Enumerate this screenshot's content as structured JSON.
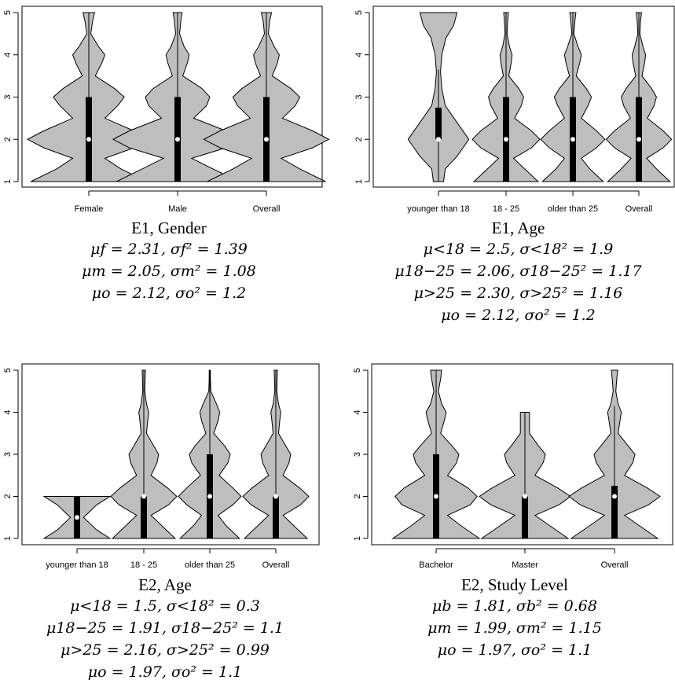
{
  "chart_data": [
    {
      "type": "violin",
      "title": "E1, Gender",
      "categories": [
        "Female",
        "Male",
        "Overall"
      ],
      "ylim": [
        1,
        5
      ],
      "yticks": [
        1,
        2,
        3,
        4,
        5
      ],
      "series": [
        {
          "q1": 1,
          "median": 2,
          "q3": 3,
          "min": 1,
          "max": 5,
          "density": [
            [
              1.0,
              0.9
            ],
            [
              1.3,
              0.5
            ],
            [
              1.55,
              0.25
            ],
            [
              1.8,
              0.7
            ],
            [
              2.0,
              0.95
            ],
            [
              2.2,
              0.7
            ],
            [
              2.5,
              0.25
            ],
            [
              2.8,
              0.45
            ],
            [
              3.0,
              0.55
            ],
            [
              3.2,
              0.4
            ],
            [
              3.5,
              0.1
            ],
            [
              3.8,
              0.2
            ],
            [
              4.0,
              0.25
            ],
            [
              4.2,
              0.15
            ],
            [
              4.5,
              0.03
            ],
            [
              4.8,
              0.06
            ],
            [
              5.0,
              0.09
            ]
          ]
        },
        {
          "q1": 1,
          "median": 2,
          "q3": 3,
          "min": 1,
          "max": 5,
          "density": [
            [
              1.0,
              0.95
            ],
            [
              1.3,
              0.55
            ],
            [
              1.55,
              0.22
            ],
            [
              1.8,
              0.75
            ],
            [
              2.0,
              1.0
            ],
            [
              2.2,
              0.75
            ],
            [
              2.5,
              0.25
            ],
            [
              2.8,
              0.45
            ],
            [
              3.0,
              0.5
            ],
            [
              3.2,
              0.38
            ],
            [
              3.5,
              0.08
            ],
            [
              3.8,
              0.15
            ],
            [
              4.0,
              0.18
            ],
            [
              4.2,
              0.1
            ],
            [
              4.5,
              0.03
            ],
            [
              4.8,
              0.05
            ],
            [
              5.0,
              0.07
            ]
          ]
        },
        {
          "q1": 1,
          "median": 2,
          "q3": 3,
          "min": 1,
          "max": 5,
          "density": [
            [
              1.0,
              0.92
            ],
            [
              1.3,
              0.52
            ],
            [
              1.55,
              0.23
            ],
            [
              1.8,
              0.72
            ],
            [
              2.0,
              0.97
            ],
            [
              2.2,
              0.72
            ],
            [
              2.5,
              0.25
            ],
            [
              2.8,
              0.45
            ],
            [
              3.0,
              0.52
            ],
            [
              3.2,
              0.38
            ],
            [
              3.5,
              0.09
            ],
            [
              3.8,
              0.17
            ],
            [
              4.0,
              0.2
            ],
            [
              4.2,
              0.12
            ],
            [
              4.5,
              0.03
            ],
            [
              4.8,
              0.05
            ],
            [
              5.0,
              0.08
            ]
          ]
        }
      ]
    },
    {
      "type": "violin",
      "title": "E1, Age",
      "categories": [
        "younger than 18",
        "18 - 25",
        "older than 25",
        "Overall"
      ],
      "ylim": [
        1,
        5
      ],
      "yticks": [
        1,
        2,
        3,
        4,
        5
      ],
      "series": [
        {
          "q1": 2,
          "median": 2,
          "q3": 2.75,
          "min": 1,
          "max": 3.65,
          "density": [
            [
              1.0,
              0.15
            ],
            [
              1.3,
              0.2
            ],
            [
              1.6,
              0.55
            ],
            [
              2.0,
              0.9
            ],
            [
              2.4,
              0.55
            ],
            [
              2.8,
              0.2
            ],
            [
              3.2,
              0.1
            ],
            [
              3.6,
              0.06
            ],
            [
              4.0,
              0.1
            ],
            [
              4.4,
              0.22
            ],
            [
              4.7,
              0.45
            ],
            [
              5.0,
              0.55
            ]
          ]
        },
        {
          "q1": 1,
          "median": 2,
          "q3": 3,
          "min": 1,
          "max": 5,
          "density": [
            [
              1.0,
              0.95
            ],
            [
              1.3,
              0.55
            ],
            [
              1.55,
              0.22
            ],
            [
              1.8,
              0.75
            ],
            [
              2.0,
              1.0
            ],
            [
              2.2,
              0.75
            ],
            [
              2.5,
              0.25
            ],
            [
              2.8,
              0.45
            ],
            [
              3.0,
              0.52
            ],
            [
              3.2,
              0.38
            ],
            [
              3.5,
              0.08
            ],
            [
              3.8,
              0.15
            ],
            [
              4.0,
              0.18
            ],
            [
              4.2,
              0.1
            ],
            [
              4.5,
              0.03
            ],
            [
              4.8,
              0.05
            ],
            [
              5.0,
              0.07
            ]
          ]
        },
        {
          "q1": 1,
          "median": 2,
          "q3": 3,
          "min": 1,
          "max": 5,
          "density": [
            [
              1.0,
              0.9
            ],
            [
              1.3,
              0.5
            ],
            [
              1.55,
              0.25
            ],
            [
              1.8,
              0.7
            ],
            [
              2.0,
              0.95
            ],
            [
              2.2,
              0.7
            ],
            [
              2.5,
              0.25
            ],
            [
              2.8,
              0.45
            ],
            [
              3.0,
              0.55
            ],
            [
              3.2,
              0.4
            ],
            [
              3.5,
              0.1
            ],
            [
              3.8,
              0.2
            ],
            [
              4.0,
              0.25
            ],
            [
              4.2,
              0.15
            ],
            [
              4.5,
              0.03
            ],
            [
              4.8,
              0.06
            ],
            [
              5.0,
              0.09
            ]
          ]
        },
        {
          "q1": 1,
          "median": 2,
          "q3": 3,
          "min": 1,
          "max": 5,
          "density": [
            [
              1.0,
              0.92
            ],
            [
              1.3,
              0.52
            ],
            [
              1.55,
              0.23
            ],
            [
              1.8,
              0.72
            ],
            [
              2.0,
              0.97
            ],
            [
              2.2,
              0.72
            ],
            [
              2.5,
              0.25
            ],
            [
              2.8,
              0.45
            ],
            [
              3.0,
              0.52
            ],
            [
              3.2,
              0.38
            ],
            [
              3.5,
              0.09
            ],
            [
              3.8,
              0.17
            ],
            [
              4.0,
              0.2
            ],
            [
              4.2,
              0.12
            ],
            [
              4.5,
              0.03
            ],
            [
              4.8,
              0.05
            ],
            [
              5.0,
              0.08
            ]
          ]
        }
      ]
    },
    {
      "type": "violin",
      "title": "E2, Age",
      "categories": [
        "younger than 18",
        "18 - 25",
        "older than 25",
        "Overall"
      ],
      "ylim": [
        1,
        5
      ],
      "yticks": [
        1,
        2,
        3,
        4,
        5
      ],
      "series": [
        {
          "q1": 1,
          "median": 1.5,
          "q3": 2,
          "min": 1,
          "max": 2,
          "density": [
            [
              1.0,
              1.0
            ],
            [
              1.2,
              0.6
            ],
            [
              1.5,
              0.2
            ],
            [
              1.8,
              0.6
            ],
            [
              2.0,
              1.0
            ]
          ]
        },
        {
          "q1": 1,
          "median": 2,
          "q3": 2,
          "min": 1,
          "max": 5,
          "density": [
            [
              1.0,
              0.95
            ],
            [
              1.3,
              0.55
            ],
            [
              1.55,
              0.22
            ],
            [
              1.8,
              0.75
            ],
            [
              2.0,
              1.0
            ],
            [
              2.2,
              0.72
            ],
            [
              2.5,
              0.22
            ],
            [
              2.8,
              0.4
            ],
            [
              3.0,
              0.45
            ],
            [
              3.2,
              0.3
            ],
            [
              3.5,
              0.08
            ],
            [
              3.8,
              0.12
            ],
            [
              4.0,
              0.15
            ],
            [
              4.2,
              0.08
            ],
            [
              4.5,
              0.03
            ],
            [
              4.8,
              0.04
            ],
            [
              5.0,
              0.05
            ]
          ]
        },
        {
          "q1": 1,
          "median": 2,
          "q3": 3,
          "min": 1,
          "max": 5,
          "density": [
            [
              1.0,
              0.9
            ],
            [
              1.3,
              0.5
            ],
            [
              1.55,
              0.25
            ],
            [
              1.8,
              0.7
            ],
            [
              2.0,
              0.95
            ],
            [
              2.2,
              0.7
            ],
            [
              2.5,
              0.28
            ],
            [
              2.8,
              0.55
            ],
            [
              3.0,
              0.62
            ],
            [
              3.2,
              0.45
            ],
            [
              3.5,
              0.12
            ],
            [
              3.8,
              0.25
            ],
            [
              4.0,
              0.3
            ],
            [
              4.2,
              0.2
            ],
            [
              4.5,
              0.03
            ],
            [
              4.8,
              0.02
            ],
            [
              5.0,
              0.02
            ]
          ]
        },
        {
          "q1": 1,
          "median": 2,
          "q3": 2,
          "min": 1,
          "max": 5,
          "density": [
            [
              1.0,
              0.95
            ],
            [
              1.3,
              0.55
            ],
            [
              1.55,
              0.22
            ],
            [
              1.8,
              0.75
            ],
            [
              2.0,
              1.0
            ],
            [
              2.2,
              0.72
            ],
            [
              2.5,
              0.22
            ],
            [
              2.8,
              0.4
            ],
            [
              3.0,
              0.45
            ],
            [
              3.2,
              0.3
            ],
            [
              3.5,
              0.08
            ],
            [
              3.8,
              0.12
            ],
            [
              4.0,
              0.15
            ],
            [
              4.2,
              0.08
            ],
            [
              4.5,
              0.03
            ],
            [
              4.8,
              0.04
            ],
            [
              5.0,
              0.05
            ]
          ]
        }
      ]
    },
    {
      "type": "violin",
      "title": "E2, Study Level",
      "categories": [
        "Bachelor",
        "Master",
        "Overall"
      ],
      "ylim": [
        1,
        5
      ],
      "yticks": [
        1,
        2,
        3,
        4,
        5
      ],
      "series": [
        {
          "q1": 1,
          "median": 2,
          "q3": 3,
          "min": 1,
          "max": 5,
          "density": [
            [
              1.0,
              0.95
            ],
            [
              1.3,
              0.55
            ],
            [
              1.55,
              0.25
            ],
            [
              1.8,
              0.75
            ],
            [
              2.0,
              0.9
            ],
            [
              2.2,
              0.7
            ],
            [
              2.5,
              0.25
            ],
            [
              2.8,
              0.45
            ],
            [
              3.0,
              0.5
            ],
            [
              3.2,
              0.35
            ],
            [
              3.5,
              0.1
            ],
            [
              3.8,
              0.18
            ],
            [
              4.0,
              0.22
            ],
            [
              4.2,
              0.12
            ],
            [
              4.5,
              0.05
            ],
            [
              4.8,
              0.1
            ],
            [
              5.0,
              0.12
            ]
          ]
        },
        {
          "q1": 1,
          "median": 2,
          "q3": 2,
          "min": 1,
          "max": 4,
          "density": [
            [
              1.0,
              0.95
            ],
            [
              1.3,
              0.55
            ],
            [
              1.55,
              0.22
            ],
            [
              1.8,
              0.75
            ],
            [
              2.0,
              1.0
            ],
            [
              2.2,
              0.72
            ],
            [
              2.5,
              0.22
            ],
            [
              2.8,
              0.4
            ],
            [
              3.0,
              0.45
            ],
            [
              3.2,
              0.3
            ],
            [
              3.5,
              0.1
            ],
            [
              3.8,
              0.1
            ],
            [
              4.0,
              0.1
            ]
          ]
        },
        {
          "q1": 1,
          "median": 2,
          "q3": 2.25,
          "min": 1,
          "max": 4.15,
          "density": [
            [
              1.0,
              0.95
            ],
            [
              1.3,
              0.55
            ],
            [
              1.55,
              0.22
            ],
            [
              1.8,
              0.75
            ],
            [
              2.0,
              1.0
            ],
            [
              2.2,
              0.72
            ],
            [
              2.5,
              0.22
            ],
            [
              2.8,
              0.4
            ],
            [
              3.0,
              0.45
            ],
            [
              3.2,
              0.3
            ],
            [
              3.5,
              0.08
            ],
            [
              3.8,
              0.12
            ],
            [
              4.0,
              0.15
            ],
            [
              4.2,
              0.08
            ],
            [
              4.5,
              0.03
            ],
            [
              4.8,
              0.05
            ],
            [
              5.0,
              0.07
            ]
          ]
        }
      ]
    }
  ],
  "captions": [
    {
      "title": "E1, Gender",
      "stats": [
        "μf = 2.31, σf² = 1.39",
        "μm = 2.05, σm² = 1.08",
        "μo = 2.12, σo² = 1.2"
      ]
    },
    {
      "title": "E1, Age",
      "stats": [
        "μ<18 = 2.5, σ<18² = 1.9",
        "μ18−25 = 2.06, σ18−25² = 1.17",
        "μ>25 = 2.30, σ>25² = 1.16",
        "μo = 2.12, σo² = 1.2"
      ]
    },
    {
      "title": "E2, Age",
      "stats": [
        "μ<18 = 1.5, σ<18² = 0.3",
        "μ18−25 = 1.91, σ18−25² = 1.1",
        "μ>25 = 2.16, σ>25² = 0.99",
        "μo = 1.97, σo² = 1.1"
      ]
    },
    {
      "title": "E2, Study Level",
      "stats": [
        "μb = 1.81, σb² = 0.68",
        "μm = 1.99, σm² = 1.15",
        "μo = 1.97, σo² = 1.1"
      ]
    }
  ]
}
